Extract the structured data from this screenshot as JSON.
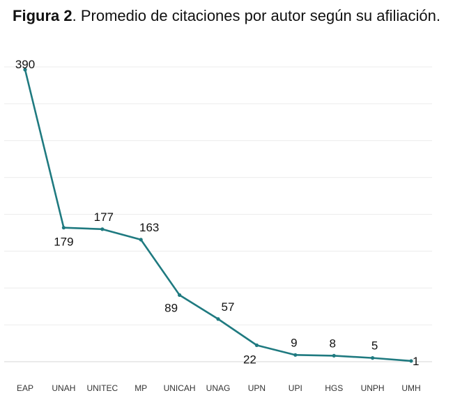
{
  "header": {
    "title_bold": "Figura 2",
    "title_rest": ". Promedio de citaciones por autor según su afiliación."
  },
  "chart_data": {
    "type": "line",
    "title": "Figura 2. Promedio de citaciones por autor según su afiliación.",
    "xlabel": "",
    "ylabel": "",
    "categories": [
      "EAP",
      "UNAH",
      "UNITEC",
      "MP",
      "UNICAH",
      "UNAG",
      "UPN",
      "UPI",
      "HGS",
      "UNPH",
      "UMH"
    ],
    "series": [
      {
        "values": [
          390,
          179,
          177,
          163,
          89,
          57,
          22,
          9,
          8,
          5,
          1
        ],
        "color": "#1f7a80"
      }
    ],
    "ylim": [
      0,
      390
    ],
    "grid": true,
    "legend": "none"
  }
}
